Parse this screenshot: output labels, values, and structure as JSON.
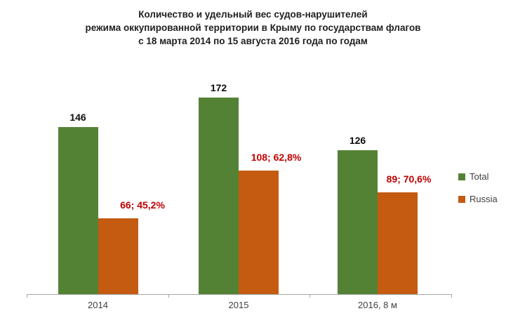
{
  "title": {
    "line1": "Количество и удельный вес судов-нарушителей",
    "line2": "режима оккупированной территории в Крыму по государствам флагов",
    "line3": "с 18 марта 2014 по 15 августа 2016 года по годам"
  },
  "legend": {
    "items": [
      {
        "label": "Total",
        "color": "#548235"
      },
      {
        "label": "Russia",
        "color": "#C55A11"
      }
    ]
  },
  "colors": {
    "total_bar": "#548235",
    "russia_bar": "#C55A11",
    "total_value_label": "#0d0d0d",
    "russia_value_label": "#C00000",
    "axis": "#A6A6A6",
    "category_text": "#404040",
    "background": "#FFFFFF"
  },
  "chart_data": {
    "type": "bar",
    "title": "Количество и удельный вес судов-нарушителей режима оккупированной территории в Крыму по государствам флагов с 18 марта 2014 по 15 августа 2016 года по годам",
    "categories": [
      "2014",
      "2015",
      "2016, 8 м"
    ],
    "series": [
      {
        "name": "Total",
        "color": "#548235",
        "values": [
          146,
          172,
          126
        ],
        "data_labels": [
          "146",
          "172",
          "126"
        ],
        "label_color": "#0d0d0d"
      },
      {
        "name": "Russia",
        "color": "#C55A11",
        "values": [
          66,
          108,
          89
        ],
        "data_labels": [
          "66; 45,2%",
          "108; 62,8%",
          "89; 70,6%"
        ],
        "percent_of_total": [
          45.2,
          62.8,
          70.6
        ],
        "label_color": "#C00000"
      }
    ],
    "xlabel": "",
    "ylabel": "",
    "ylim": [
      0,
      190
    ],
    "grid": false,
    "y_axis_visible": false,
    "legend_position": "right"
  }
}
